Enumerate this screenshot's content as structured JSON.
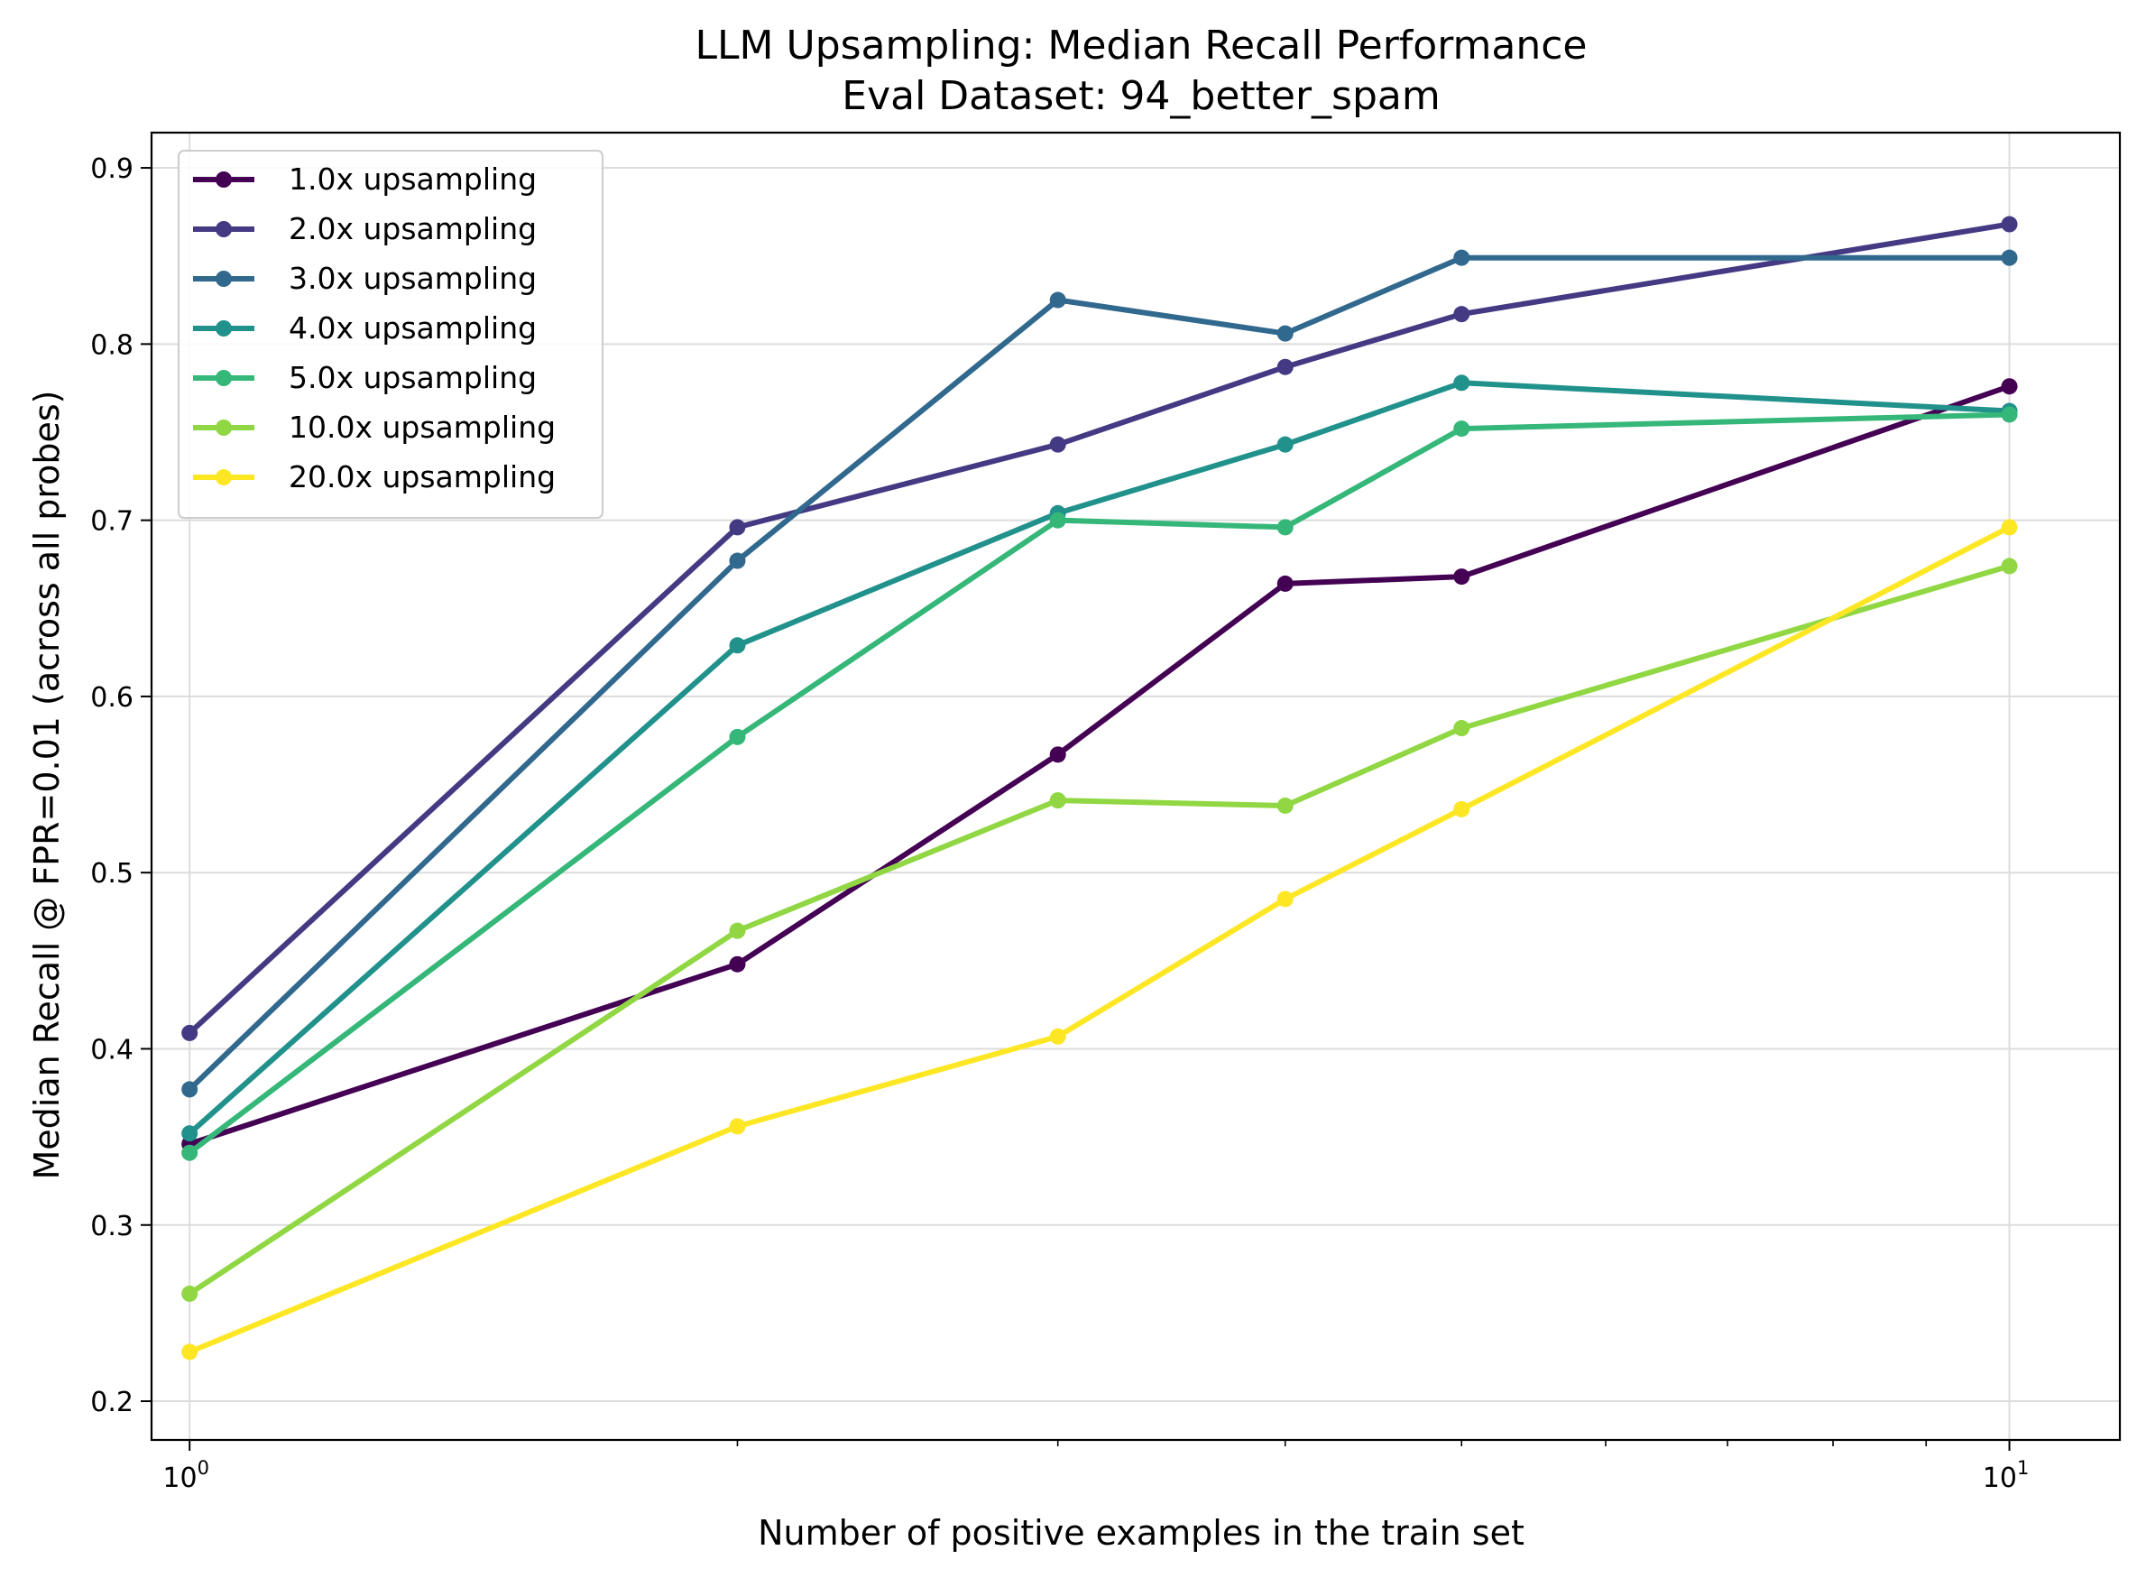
{
  "chart_data": {
    "type": "line",
    "title": "LLM Upsampling: Median Recall Performance",
    "subtitle": "Eval Dataset: 94_better_spam",
    "xlabel": "Number of positive examples in the train set",
    "ylabel": "Median Recall @ FPR=0.01 (across all probes)",
    "xscale": "log",
    "xlim": [
      0.953,
      11.5
    ],
    "ylim": [
      0.178,
      0.92
    ],
    "x_ticks": [
      {
        "value": 1,
        "base": "10",
        "exp": "0"
      },
      {
        "value": 10,
        "base": "10",
        "exp": "1"
      }
    ],
    "y_ticks": [
      0.2,
      0.3,
      0.4,
      0.5,
      0.6,
      0.7,
      0.8,
      0.9
    ],
    "grid": true,
    "legend_position": "upper-left",
    "x": [
      1,
      2,
      3,
      4,
      5,
      10
    ],
    "series": [
      {
        "name": "1.0x upsampling",
        "color": "#440154",
        "values": [
          0.346,
          0.448,
          0.567,
          0.664,
          0.668,
          0.776
        ]
      },
      {
        "name": "2.0x upsampling",
        "color": "#443983",
        "values": [
          0.409,
          0.696,
          0.743,
          0.787,
          0.817,
          0.868
        ]
      },
      {
        "name": "3.0x upsampling",
        "color": "#31688e",
        "values": [
          0.377,
          0.677,
          0.825,
          0.806,
          0.849,
          0.849
        ]
      },
      {
        "name": "4.0x upsampling",
        "color": "#21918c",
        "values": [
          0.352,
          0.629,
          0.704,
          0.743,
          0.778,
          0.762
        ]
      },
      {
        "name": "5.0x upsampling",
        "color": "#35b779",
        "values": [
          0.341,
          0.577,
          0.7,
          0.696,
          0.752,
          0.76
        ]
      },
      {
        "name": "10.0x upsampling",
        "color": "#90d743",
        "values": [
          0.261,
          0.467,
          0.541,
          0.538,
          0.582,
          0.674
        ]
      },
      {
        "name": "20.0x upsampling",
        "color": "#fde725",
        "values": [
          0.228,
          0.356,
          0.407,
          0.485,
          0.536,
          0.696
        ]
      }
    ]
  }
}
